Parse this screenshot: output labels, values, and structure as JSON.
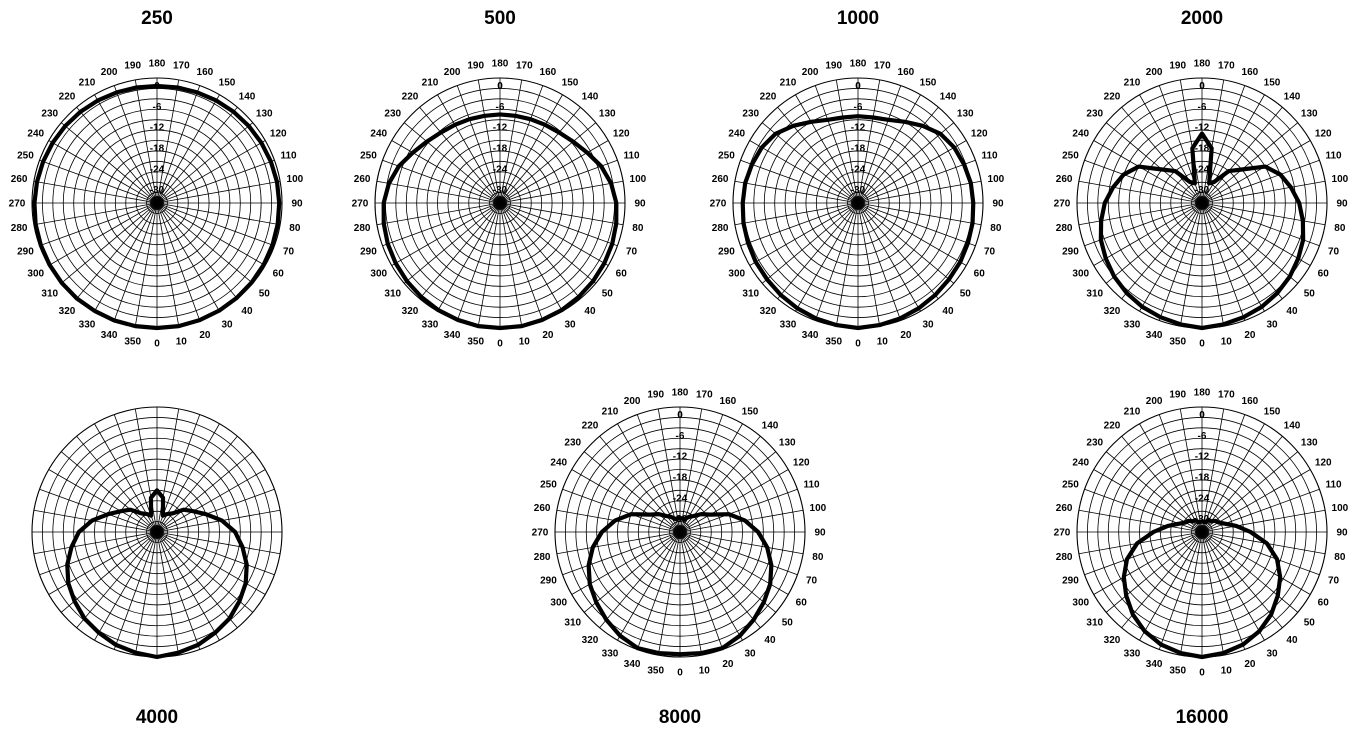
{
  "chart_data": [
    {
      "type": "polar",
      "title": "250",
      "angle_labels_shown": true,
      "radial_labels": [
        "0",
        "-6",
        "-12",
        "-18",
        "-24",
        "-30"
      ],
      "r_range_db": [
        -36,
        0
      ],
      "angles_deg": [
        0,
        10,
        20,
        30,
        40,
        50,
        60,
        70,
        80,
        90,
        100,
        110,
        120,
        130,
        140,
        150,
        160,
        170,
        180,
        190,
        200,
        210,
        220,
        230,
        240,
        250,
        260,
        270,
        280,
        290,
        300,
        310,
        320,
        330,
        340,
        350
      ],
      "values_db": [
        0,
        0,
        -0.1,
        -0.2,
        -0.3,
        -0.4,
        -0.5,
        -0.6,
        -0.7,
        -0.8,
        -0.9,
        -1.1,
        -1.3,
        -1.5,
        -1.7,
        -1.9,
        -2.1,
        -2.2,
        -2.3,
        -2.2,
        -2.1,
        -1.9,
        -1.7,
        -1.5,
        -1.3,
        -1.1,
        -0.9,
        -0.7,
        -0.5,
        -0.4,
        -0.3,
        -0.2,
        -0.1,
        -0.1,
        0,
        0
      ]
    },
    {
      "type": "polar",
      "title": "500",
      "angle_labels_shown": true,
      "radial_labels": [
        "0",
        "-6",
        "-12",
        "-18",
        "-24",
        "-30"
      ],
      "r_range_db": [
        -36,
        0
      ],
      "angles_deg": [
        0,
        10,
        20,
        30,
        40,
        50,
        60,
        70,
        80,
        90,
        100,
        110,
        120,
        130,
        140,
        150,
        160,
        170,
        180,
        190,
        200,
        210,
        220,
        230,
        240,
        250,
        260,
        270,
        280,
        290,
        300,
        310,
        320,
        330,
        340,
        350
      ],
      "values_db": [
        0,
        0,
        -0.2,
        -0.4,
        -0.7,
        -1,
        -1.3,
        -1.6,
        -2,
        -2.5,
        -3.5,
        -5,
        -7,
        -8.5,
        -9.5,
        -10,
        -10.3,
        -10.5,
        -10.5,
        -10.5,
        -10.3,
        -10,
        -9.5,
        -8.5,
        -7,
        -5,
        -3.5,
        -2.5,
        -2,
        -1.6,
        -1.3,
        -1,
        -0.7,
        -0.4,
        -0.2,
        0
      ]
    },
    {
      "type": "polar",
      "title": "1000",
      "angle_labels_shown": true,
      "radial_labels": [
        "0",
        "-6",
        "-12",
        "-18",
        "-24",
        "-30"
      ],
      "r_range_db": [
        -36,
        0
      ],
      "angles_deg": [
        0,
        10,
        20,
        30,
        40,
        50,
        60,
        70,
        80,
        90,
        100,
        110,
        120,
        130,
        140,
        150,
        160,
        170,
        180,
        190,
        200,
        210,
        220,
        230,
        240,
        250,
        260,
        270,
        280,
        290,
        300,
        310,
        320,
        330,
        340,
        350
      ],
      "values_db": [
        0,
        -0.3,
        -0.6,
        -1,
        -1.4,
        -1.8,
        -2,
        -2.3,
        -2.5,
        -2.8,
        -3,
        -3.5,
        -4,
        -5,
        -7,
        -9,
        -10.5,
        -11,
        -11,
        -11,
        -10.5,
        -9,
        -7,
        -5,
        -4,
        -3.5,
        -3,
        -2.8,
        -2.5,
        -2.3,
        -2,
        -1.8,
        -1.4,
        -1,
        -0.6,
        -0.3
      ]
    },
    {
      "type": "polar",
      "title": "2000",
      "angle_labels_shown": true,
      "radial_labels": [
        "0",
        "-6",
        "-12",
        "-18",
        "-24",
        "-30"
      ],
      "r_range_db": [
        -36,
        0
      ],
      "angles_deg": [
        0,
        10,
        20,
        30,
        40,
        50,
        60,
        70,
        80,
        90,
        100,
        110,
        120,
        130,
        140,
        150,
        160,
        170,
        180,
        190,
        200,
        210,
        220,
        230,
        240,
        250,
        260,
        270,
        280,
        290,
        300,
        310,
        320,
        330,
        340,
        350
      ],
      "values_db": [
        0,
        -0.5,
        -1,
        -1.5,
        -2.2,
        -3,
        -4,
        -5,
        -6.5,
        -8,
        -10,
        -12,
        -15,
        -21,
        -24,
        -29,
        -30,
        -20,
        -16,
        -20,
        -30,
        -29,
        -24,
        -21,
        -15,
        -12,
        -10,
        -8,
        -6.5,
        -5,
        -4,
        -3,
        -2.2,
        -1.5,
        -1,
        -0.5
      ]
    },
    {
      "type": "polar",
      "title": "4000",
      "angle_labels_shown": false,
      "radial_labels": [],
      "r_range_db": [
        -36,
        0
      ],
      "angles_deg": [
        0,
        10,
        20,
        30,
        40,
        50,
        60,
        70,
        80,
        90,
        100,
        110,
        120,
        130,
        140,
        150,
        160,
        170,
        180,
        190,
        200,
        210,
        220,
        230,
        240,
        250,
        260,
        270,
        280,
        290,
        300,
        310,
        320,
        330,
        340,
        350
      ],
      "values_db": [
        0,
        -0.7,
        -1.4,
        -2.5,
        -3.5,
        -5,
        -6.5,
        -8.5,
        -11,
        -13.5,
        -17,
        -21,
        -24,
        -26,
        -29,
        -30,
        -31,
        -26,
        -24,
        -26,
        -31,
        -30,
        -29,
        -26,
        -24,
        -21,
        -17,
        -13.5,
        -11,
        -8.5,
        -6.5,
        -5,
        -3.5,
        -2.5,
        -1.4,
        -0.7
      ]
    },
    {
      "type": "polar",
      "title": "8000",
      "angle_labels_shown": true,
      "radial_labels": [
        "0",
        "-6",
        "-12",
        "-18",
        "-24",
        "-30"
      ],
      "r_range_db": [
        -36,
        0
      ],
      "angles_deg": [
        0,
        10,
        20,
        30,
        40,
        50,
        60,
        70,
        80,
        90,
        100,
        110,
        120,
        130,
        140,
        150,
        160,
        170,
        180,
        190,
        200,
        210,
        220,
        230,
        240,
        250,
        260,
        270,
        280,
        290,
        300,
        310,
        320,
        330,
        340,
        350
      ],
      "values_db": [
        -0.8,
        -0.6,
        -0.4,
        -1.5,
        -3,
        -4.5,
        -6,
        -8,
        -10.5,
        -13.5,
        -17,
        -21,
        -26,
        -28,
        -30,
        -31,
        -32,
        -32,
        -32,
        -32,
        -32,
        -31,
        -30,
        -28,
        -26,
        -21,
        -17,
        -13.5,
        -10.5,
        -8,
        -6,
        -4.5,
        -3,
        -1.5,
        -0.4,
        -0.6
      ]
    },
    {
      "type": "polar",
      "title": "16000",
      "angle_labels_shown": true,
      "radial_labels": [
        "0",
        "-6",
        "-12",
        "-18",
        "-24",
        "-30"
      ],
      "r_range_db": [
        -36,
        0
      ],
      "angles_deg": [
        0,
        10,
        20,
        30,
        40,
        50,
        60,
        70,
        80,
        90,
        100,
        110,
        120,
        130,
        140,
        150,
        160,
        170,
        180,
        190,
        200,
        210,
        220,
        230,
        240,
        250,
        260,
        270,
        280,
        290,
        300,
        310,
        320,
        330,
        340,
        350
      ],
      "values_db": [
        0,
        -0.6,
        -1.5,
        -3,
        -5,
        -7.5,
        -10,
        -13,
        -17,
        -22,
        -26,
        -29,
        -30.5,
        -31,
        -32,
        -32,
        -33,
        -33,
        -33,
        -33,
        -33,
        -32,
        -32,
        -31,
        -30.5,
        -29,
        -26,
        -22,
        -17,
        -13,
        -10,
        -7.5,
        -5,
        -3,
        -1.5,
        -0.6
      ]
    }
  ]
}
